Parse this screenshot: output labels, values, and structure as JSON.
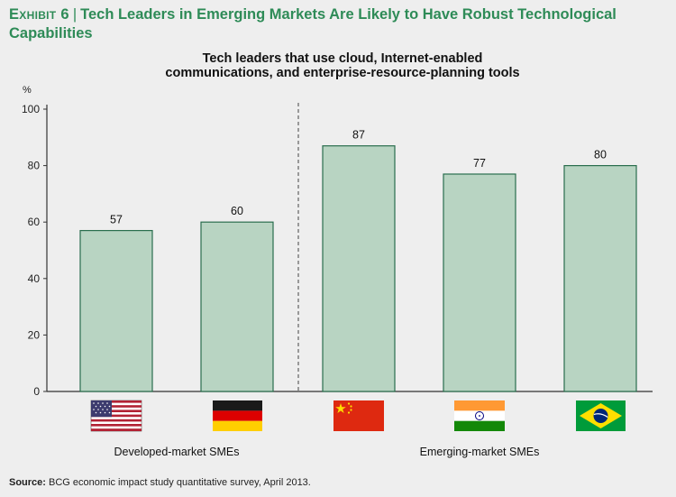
{
  "header": {
    "exhibit_label": "Exhibit 6",
    "separator": "|",
    "title": "Tech Leaders in Emerging Markets Are Likely to Have Robust Technological Capabilities"
  },
  "chart_data": {
    "type": "bar",
    "title_line1": "Tech leaders that use cloud, Internet-enabled",
    "title_line2": "communications, and enterprise-resource-planning tools",
    "ylabel": "%",
    "ylim": [
      0,
      100
    ],
    "yticks": [
      0,
      20,
      40,
      60,
      80,
      100
    ],
    "categories": [
      "United States",
      "Germany",
      "China",
      "India",
      "Brazil"
    ],
    "values": [
      57,
      60,
      87,
      77,
      80
    ],
    "groups": [
      {
        "label": "Developed-market SMEs",
        "members": [
          0,
          1
        ]
      },
      {
        "label": "Emerging-market SMEs",
        "members": [
          2,
          3,
          4
        ]
      }
    ],
    "grid": false
  },
  "colors": {
    "bar_fill": "#b8d4c2",
    "bar_stroke": "#2a6e4e",
    "title": "#2e8b57",
    "axis": "#333333"
  },
  "footer": {
    "source_label": "Source:",
    "source_text": "BCG economic impact study quantitative survey, April 2013."
  }
}
